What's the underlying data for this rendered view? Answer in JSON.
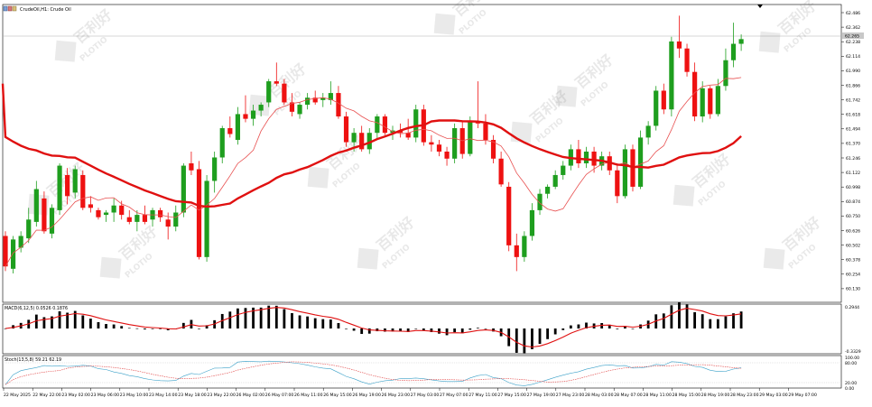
{
  "window": {
    "title": "CrudeOil,H1:  Crude Oil",
    "symbol_icon": "chart-window-icon"
  },
  "price_axis": {
    "labels": [
      "62.486",
      "62.362",
      "62.238",
      "62.114",
      "61.990",
      "61.866",
      "61.742",
      "61.618",
      "61.494",
      "61.370",
      "61.246",
      "61.122",
      "60.998",
      "60.874",
      "60.750",
      "60.626",
      "60.502",
      "60.378",
      "60.254",
      "60.130"
    ],
    "current_price": "62.265"
  },
  "macd": {
    "label": "MACD(6,12,5) 0.0526 0.1876",
    "axis_top": "0.2944",
    "axis_bottom": "-0.3329"
  },
  "stoch": {
    "label": "Stoch(13,5,8) 59.21 62.19",
    "axis_top": "100.00",
    "axis_mid": "80.00",
    "axis_low": "20.00",
    "axis_bottom": "0.00"
  },
  "time_axis": {
    "labels": [
      "22 May 2025",
      "22 May 22:00",
      "23 May 02:00",
      "23 May 06:00",
      "23 May 10:00",
      "23 May 14:00",
      "23 May 18:00",
      "23 May 22:00",
      "26 May 02:00",
      "26 May 07:00",
      "26 May 11:00",
      "26 May 15:00",
      "26 May 19:00",
      "26 May 23:00",
      "27 May 03:00",
      "27 May 07:00",
      "27 May 11:00",
      "27 May 15:00",
      "27 May 19:00",
      "27 May 23:00",
      "28 May 03:00",
      "28 May 07:00",
      "28 May 11:00",
      "28 May 15:00",
      "28 May 19:00",
      "28 May 23:00",
      "29 May 03:00",
      "29 May 07:00"
    ]
  },
  "colors": {
    "bull": "#1e9e1e",
    "bear": "#ee1111",
    "ma_slow": "#e01010",
    "ma_fast": "#e85050",
    "macd_signal": "#e01010",
    "stoch_main": "#3aa0c8",
    "stoch_signal": "#e04040"
  },
  "watermark": {
    "brand": "PLOTIO",
    "cn": "百利好"
  }
}
